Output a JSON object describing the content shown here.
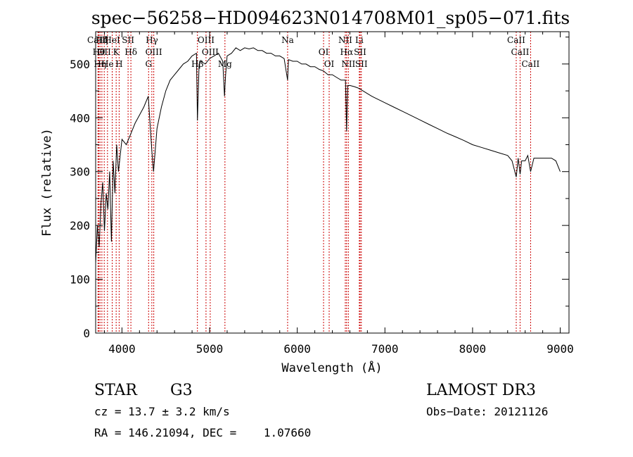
{
  "chart_data": {
    "type": "line",
    "title": "spec−56258−HD094623N014708M01_sp05−071.fits",
    "xlabel": "Wavelength (Å)",
    "ylabel": "Flux (relative)",
    "xlim": [
      3700,
      9100
    ],
    "ylim": [
      0,
      560
    ],
    "xticks": [
      4000,
      5000,
      6000,
      7000,
      8000,
      9000
    ],
    "yticks": [
      0,
      100,
      200,
      300,
      400,
      500
    ],
    "grid": false,
    "line_color": "#000000",
    "marker_color": "#cc0000",
    "x": [
      3700,
      3720,
      3740,
      3760,
      3780,
      3800,
      3820,
      3840,
      3860,
      3880,
      3900,
      3920,
      3940,
      3960,
      3980,
      4000,
      4050,
      4100,
      4150,
      4200,
      4250,
      4300,
      4340,
      4360,
      4400,
      4450,
      4500,
      4550,
      4600,
      4650,
      4700,
      4750,
      4800,
      4850,
      4861,
      4880,
      4900,
      4950,
      5000,
      5050,
      5100,
      5150,
      5170,
      5183,
      5200,
      5250,
      5300,
      5350,
      5400,
      5450,
      5500,
      5550,
      5600,
      5650,
      5700,
      5750,
      5800,
      5850,
      5890,
      5900,
      5950,
      6000,
      6050,
      6100,
      6150,
      6200,
      6250,
      6300,
      6350,
      6400,
      6450,
      6500,
      6550,
      6563,
      6575,
      6600,
      6650,
      6700,
      6750,
      6800,
      6850,
      6900,
      6950,
      7000,
      7100,
      7200,
      7300,
      7400,
      7500,
      7600,
      7700,
      7800,
      7900,
      8000,
      8100,
      8200,
      8300,
      8400,
      8450,
      8498,
      8520,
      8542,
      8560,
      8600,
      8630,
      8662,
      8700,
      8750,
      8800,
      8850,
      8900,
      8950,
      9000
    ],
    "y": [
      130,
      200,
      160,
      240,
      280,
      190,
      260,
      230,
      300,
      170,
      320,
      260,
      350,
      300,
      330,
      360,
      350,
      370,
      390,
      405,
      420,
      440,
      340,
      300,
      380,
      420,
      450,
      470,
      480,
      490,
      500,
      505,
      515,
      520,
      395,
      500,
      505,
      500,
      510,
      515,
      520,
      505,
      440,
      480,
      515,
      520,
      530,
      525,
      530,
      528,
      530,
      525,
      525,
      520,
      520,
      515,
      515,
      510,
      470,
      508,
      505,
      505,
      500,
      500,
      495,
      495,
      490,
      487,
      480,
      480,
      475,
      470,
      470,
      375,
      460,
      460,
      458,
      455,
      450,
      445,
      440,
      436,
      432,
      428,
      420,
      412,
      404,
      396,
      388,
      380,
      372,
      365,
      358,
      350,
      345,
      340,
      335,
      330,
      320,
      290,
      325,
      295,
      320,
      320,
      330,
      300,
      325,
      325,
      325,
      325,
      325,
      320,
      300
    ]
  },
  "markers": [
    {
      "w": 3726,
      "label": "CaIII"
    },
    {
      "w": 3736,
      "label": "Hθ"
    },
    {
      "w": 3750,
      "label": "Hη"
    },
    {
      "w": 3771,
      "label": "Hζ"
    },
    {
      "w": 3798,
      "label": "OII"
    },
    {
      "w": 3835,
      "label": "He"
    },
    {
      "w": 3889,
      "label": "HeI"
    },
    {
      "w": 3934,
      "label": "K"
    },
    {
      "w": 3968,
      "label": "H"
    },
    {
      "w": 4070,
      "label": "SII"
    },
    {
      "w": 4102,
      "label": "Hδ"
    },
    {
      "w": 4304,
      "label": "G"
    },
    {
      "w": 4341,
      "label": "Hγ"
    },
    {
      "w": 4363,
      "label": "OIII"
    },
    {
      "w": 4861,
      "label": "Hβ"
    },
    {
      "w": 4959,
      "label": "OIII"
    },
    {
      "w": 5007,
      "label": "OIII"
    },
    {
      "w": 5175,
      "label": "Mg"
    },
    {
      "w": 5890,
      "label": "Na"
    },
    {
      "w": 6300,
      "label": "OI"
    },
    {
      "w": 6364,
      "label": "OI"
    },
    {
      "w": 6548,
      "label": "NII"
    },
    {
      "w": 6563,
      "label": "Hα"
    },
    {
      "w": 6583,
      "label": "NII"
    },
    {
      "w": 6708,
      "label": "Li"
    },
    {
      "w": 6717,
      "label": "SII"
    },
    {
      "w": 6731,
      "label": "SII"
    },
    {
      "w": 8498,
      "label": "CaII"
    },
    {
      "w": 8542,
      "label": "CaII"
    },
    {
      "w": 8662,
      "label": "CaII"
    }
  ],
  "info": {
    "class_label": "STAR",
    "subclass": "G3",
    "survey": "LAMOST DR3",
    "cz": "cz = 13.7 ± 3.2 km/s",
    "obs_date": "Obs−Date: 20121126",
    "radec": "RA = 146.21094, DEC =    1.07660"
  }
}
